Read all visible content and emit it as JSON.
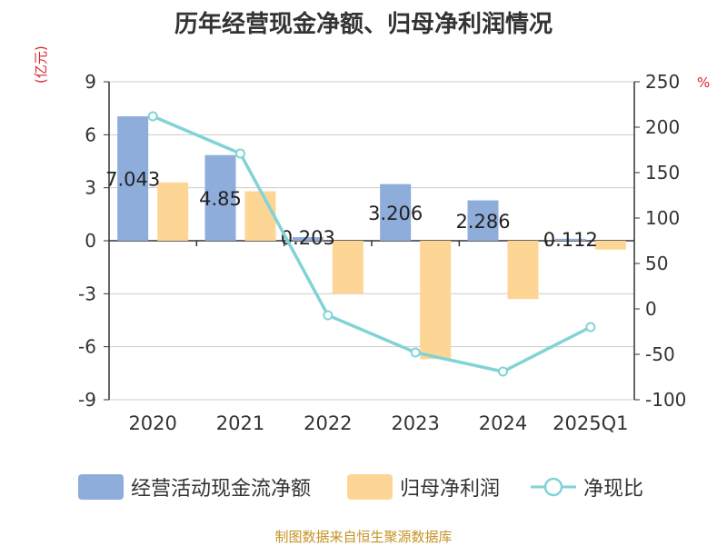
{
  "title": "历年经营现金净额、归母净利润情况",
  "left_unit": "(亿元)",
  "right_unit": "%",
  "source": "制图数据来自恒生聚源数据库",
  "colors": {
    "cash": "#8eadda",
    "profit": "#fdd695",
    "ratio": "#82d3d6",
    "label": "#d9262c"
  },
  "chart_data": {
    "type": "bar",
    "categories": [
      "2020",
      "2021",
      "2022",
      "2023",
      "2024",
      "2025Q1"
    ],
    "series": [
      {
        "name": "经营活动现金流净额",
        "type": "bar",
        "axis": "left",
        "values": [
          7.043,
          4.85,
          0.203,
          3.206,
          2.286,
          0.112
        ],
        "labels": [
          "7.043",
          "4.85",
          "0.203",
          "3.206",
          "2.286",
          "0.112"
        ]
      },
      {
        "name": "归母净利润",
        "type": "bar",
        "axis": "left",
        "values": [
          3.3,
          2.8,
          -3.0,
          -6.7,
          -3.3,
          -0.5
        ]
      },
      {
        "name": "净现比",
        "type": "line",
        "axis": "right",
        "values": [
          212,
          171,
          -7,
          -48,
          -69,
          -20
        ]
      }
    ],
    "left_axis": {
      "min": -9,
      "max": 9,
      "ticks": [
        9,
        6,
        3,
        0,
        -3,
        -6,
        -9
      ]
    },
    "right_axis": {
      "min": -100,
      "max": 250,
      "ticks": [
        250,
        200,
        150,
        100,
        50,
        0,
        -50,
        -100
      ]
    }
  }
}
